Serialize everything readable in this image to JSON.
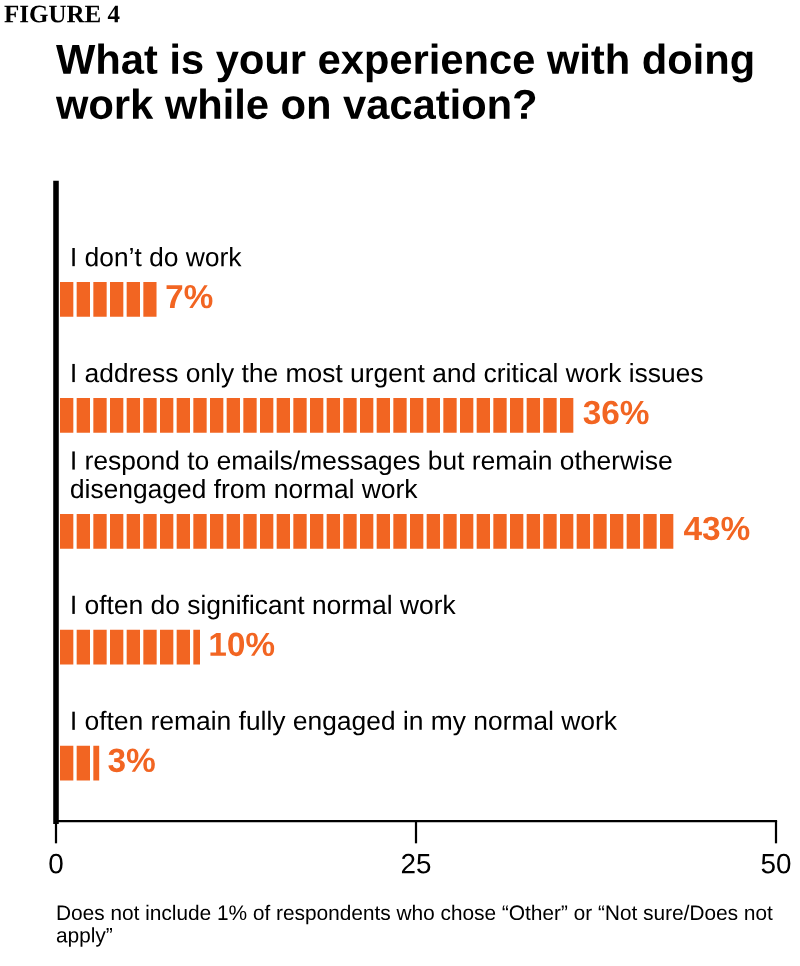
{
  "chart_data": {
    "type": "bar",
    "orientation": "horizontal",
    "title": "What is your experience with doing work while on vacation?",
    "categories": [
      "I don’t do work",
      "I address only the most urgent and critical work issues",
      "I respond to emails/messages but remain otherwise disengaged from normal work",
      "I often do significant normal work",
      "I often remain fully engaged in my normal work"
    ],
    "values": [
      7,
      36,
      43,
      10,
      3
    ],
    "color": "#f26522",
    "value_labels": [
      "7%",
      "36%",
      "43%",
      "10%",
      "3%"
    ],
    "xlim": [
      0,
      50
    ],
    "xticks": [
      0,
      25,
      50
    ],
    "grid": false,
    "legend": false,
    "tick_labels": "x",
    "annotations": [
      "FIGURE 4",
      "Does not include 1% of respondents who chose “Other” or “Not sure/Does not apply”"
    ]
  }
}
